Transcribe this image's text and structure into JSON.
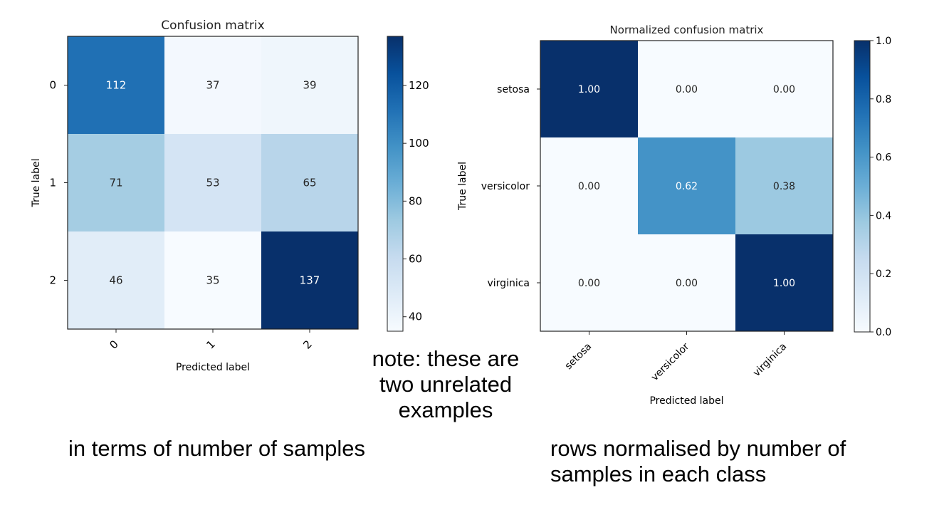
{
  "chart_data": [
    {
      "type": "heatmap",
      "title": "Confusion matrix",
      "xlabel": "Predicted label",
      "ylabel": "True label",
      "x_categories": [
        "0",
        "1",
        "2"
      ],
      "y_categories": [
        "0",
        "1",
        "2"
      ],
      "values": [
        [
          112,
          37,
          39
        ],
        [
          71,
          53,
          65
        ],
        [
          46,
          35,
          137
        ]
      ],
      "cell_labels": [
        [
          "112",
          "37",
          "39"
        ],
        [
          "71",
          "53",
          "65"
        ],
        [
          "46",
          "35",
          "137"
        ]
      ],
      "colormap": "Blues",
      "colorbar": {
        "min": 35,
        "max": 137,
        "ticks": [
          40,
          60,
          80,
          100,
          120
        ]
      }
    },
    {
      "type": "heatmap",
      "title": "Normalized confusion matrix",
      "xlabel": "Predicted label",
      "ylabel": "True label",
      "x_categories": [
        "setosa",
        "versicolor",
        "virginica"
      ],
      "y_categories": [
        "setosa",
        "versicolor",
        "virginica"
      ],
      "values": [
        [
          1.0,
          0.0,
          0.0
        ],
        [
          0.0,
          0.62,
          0.38
        ],
        [
          0.0,
          0.0,
          1.0
        ]
      ],
      "cell_labels": [
        [
          "1.00",
          "0.00",
          "0.00"
        ],
        [
          "0.00",
          "0.62",
          "0.38"
        ],
        [
          "0.00",
          "0.00",
          "1.00"
        ]
      ],
      "colormap": "Blues",
      "colorbar": {
        "min": 0.0,
        "max": 1.0,
        "ticks": [
          0.0,
          0.2,
          0.4,
          0.6,
          0.8,
          1.0
        ]
      }
    }
  ],
  "captions": {
    "note": "note: these are two unrelated examples",
    "left": "in terms of number of samples",
    "right": "rows normalised by number of samples in each class"
  },
  "colors": {
    "blues_light": "#f7fbff",
    "blues_dark": "#08306b"
  }
}
